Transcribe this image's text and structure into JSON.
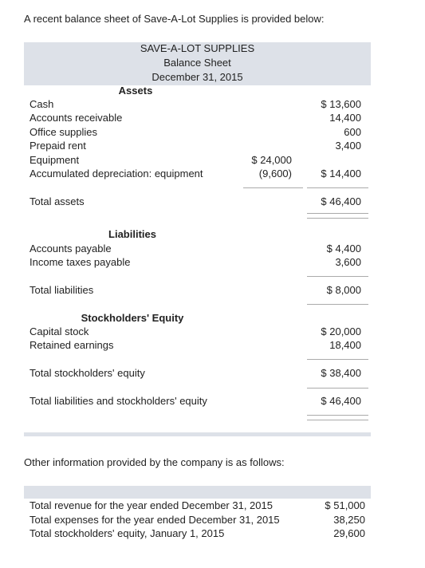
{
  "intro": "A recent balance sheet of Save-A-Lot Supplies is provided below:",
  "balance_sheet": {
    "company": "SAVE-A-LOT SUPPLIES",
    "title": "Balance Sheet",
    "date": "December 31, 2015",
    "assets": {
      "heading": "Assets",
      "rows": [
        {
          "label": "Cash",
          "amount": "$ 13,600"
        },
        {
          "label": "Accounts receivable",
          "amount": "14,400"
        },
        {
          "label": "Office supplies",
          "amount": "600"
        },
        {
          "label": "Prepaid rent",
          "amount": "3,400"
        },
        {
          "label": "Equipment",
          "detail": "$ 24,000"
        },
        {
          "label": "Accumulated depreciation: equipment",
          "detail": "(9,600)",
          "amount": "$ 14,400"
        }
      ],
      "total": {
        "label": "Total assets",
        "amount": "$ 46,400"
      }
    },
    "liabilities": {
      "heading": "Liabilities",
      "rows": [
        {
          "label": "Accounts payable",
          "amount": "$ 4,400"
        },
        {
          "label": "Income taxes payable",
          "amount": "3,600"
        }
      ],
      "total": {
        "label": "Total liabilities",
        "amount": "$ 8,000"
      }
    },
    "equity": {
      "heading": "Stockholders' Equity",
      "rows": [
        {
          "label": "Capital stock",
          "amount": "$ 20,000"
        },
        {
          "label": "Retained earnings",
          "amount": "18,400"
        }
      ],
      "total": {
        "label": "Total stockholders' equity",
        "amount": "$ 38,400"
      }
    },
    "grand_total": {
      "label": "Total liabilities and stockholders' equity",
      "amount": "$ 46,400"
    }
  },
  "other": {
    "intro": "Other information provided by the company is as follows:",
    "rows": [
      {
        "label": "Total revenue for the year ended December 31, 2015",
        "amount": "$ 51,000"
      },
      {
        "label": "Total expenses for the year ended December 31, 2015",
        "amount": "38,250"
      },
      {
        "label": "Total stockholders' equity, January 1, 2015",
        "amount": "29,600"
      }
    ]
  }
}
